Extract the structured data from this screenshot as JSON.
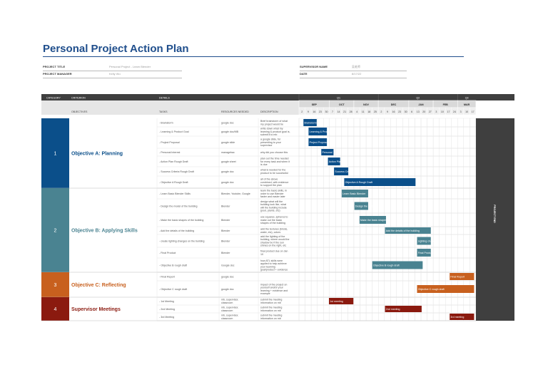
{
  "title": "Personal Project Action Plan",
  "meta": {
    "project_title_label": "PROJECT TITLE",
    "project_title_value": "Personal Project - Learn Blender",
    "project_manager_label": "PROJECT MANAGER",
    "project_manager_value": "Kelly Wu",
    "supervisor_label": "SUPERVISOR NAME",
    "supervisor_value": "吴老师",
    "date_label": "DATE",
    "date_value": "8/17/22"
  },
  "headers": {
    "category": "CATEGORY",
    "criterion": "CRITERION",
    "details": "DETAILS",
    "objectives": "OBJECTIVES",
    "tasks": "TASKS",
    "resources": "RESOURCES NEEDED",
    "description": "DESCRIPTION"
  },
  "quarters": [
    "Q1",
    "Q2",
    "Q3"
  ],
  "months": [
    "SEP",
    "OCT",
    "NOV",
    "DEC",
    "JAN",
    "FEB",
    "MAR"
  ],
  "weeks": [
    "2",
    "9",
    "16",
    "23",
    "30",
    "7",
    "14",
    "21",
    "28",
    "4",
    "11",
    "18",
    "25",
    "2",
    "9",
    "16",
    "23",
    "30",
    "6",
    "13",
    "20",
    "27",
    "3",
    "10",
    "17",
    "24",
    "3",
    "10",
    "17"
  ],
  "project_end_label": "PROJECT END",
  "colors": {
    "planning": "#0b4f8a",
    "applying": "#4a8391",
    "reflecting": "#c8601e",
    "meetings": "#8b1a0f",
    "header": "#3f3f3f"
  },
  "groups": [
    {
      "num": "1",
      "objective": "Objective A: Planning",
      "color_key": "planning",
      "tasks": [
        {
          "task": "Brainstorm",
          "res": "google doc",
          "desc": [
            "Brief brainstorm of what",
            "my project would be"
          ],
          "bar": "Brainstorm"
        },
        {
          "task": "Learning & Product Goal",
          "res": "google doc/MB",
          "desc": [
            "write down what my",
            "learning & product goal is,",
            "submit it to mb"
          ],
          "bar": "Learning & Product Goal"
        },
        {
          "task": "Project Proposal",
          "res": "google slide",
          "desc": [
            "a google slide, for",
            "presenting to your",
            "supervisor"
          ],
          "bar": "Project Proposal"
        },
        {
          "task": "Personal Interest",
          "res": "managebac",
          "desc": [
            "why did you choose this"
          ],
          "bar": "Personal"
        },
        {
          "task": "Action Plan Rough Draft",
          "res": "google sheet",
          "desc": [
            "plan out the time needed",
            "for every task and when it",
            "is due"
          ],
          "bar": "Action Plan"
        },
        {
          "task": "Success Criteria Rough Draft",
          "res": "google doc",
          "desc": [
            "what is needed for the",
            "product to be successful"
          ],
          "bar": "Success Criteria"
        },
        {
          "task": "Objective A Rough Draft",
          "res": "google doc",
          "desc": [
            "all of the above",
            "combined, with evidence",
            "to support the plan"
          ],
          "bar": "Objective A Rough Draft"
        }
      ]
    },
    {
      "num": "2",
      "objective": "Objective B: Applying Skills",
      "color_key": "applying",
      "tasks": [
        {
          "task": "Learn Basic Blender Skills",
          "res": "Blender, Youtube, Google",
          "desc": [
            "learn the basic skills, in",
            "order to use Blender",
            "faster and easier later"
          ],
          "bar": "Learn Basic Blender"
        },
        {
          "task": "Design the model of the building",
          "res": "Blender",
          "desc": [
            "design what will the",
            "building look like, what",
            "will the building include",
            "(pool, plants, etc)"
          ],
          "bar": "Design the model"
        },
        {
          "task": "Make the basic shapes of the building",
          "res": "Blender",
          "desc": [
            "use squares, spheres to",
            "make out the basic",
            "shapes of the building"
          ],
          "bar": "Make the basic shapes"
        },
        {
          "task": "Add the details of the building",
          "res": "Blender",
          "desc": [
            "add the textures (bricks,",
            "water, etc), colors"
          ],
          "bar": "Add the details of the building"
        },
        {
          "task": "create lighting changes on the building",
          "res": "Blender",
          "desc": [
            "add the lighting of the",
            "building, where would the",
            "shadow be if the sun",
            "shines on the right, etc"
          ],
          "bar": "Lighting changes"
        },
        {
          "task": "Final Product",
          "res": "Blender",
          "desc": [
            "final product due on Jan",
            "10"
          ],
          "bar": "Final Product"
        },
        {
          "task": "Objective B rough draft",
          "res": "Google doc",
          "desc": [
            "how ATL skills were",
            "applied to help achieve",
            "your learning",
            "goal/product + evidence"
          ],
          "bar": "Objective B rough draft"
        }
      ]
    },
    {
      "num": "3",
      "objective": "Objective C: Reflecting",
      "color_key": "reflecting",
      "tasks": [
        {
          "task": "Final Report",
          "res": "google doc",
          "desc": [],
          "bar": "Final Report"
        },
        {
          "task": "Objective C rough draft",
          "res": "google doc",
          "desc": [
            "impact of the project on",
            "yourself and/or your",
            "learning + evidence and",
            "example"
          ],
          "bar": "Objective C rough draft"
        }
      ]
    },
    {
      "num": "4",
      "objective": "Supervisor Meetings",
      "color_key": "meetings",
      "tasks": [
        {
          "task": "1st Meeting",
          "res": [
            "mb, supervisor,",
            "classroom"
          ],
          "desc": [
            "submit the meeting",
            "information on mb"
          ],
          "bar": "1st meeting"
        },
        {
          "task": "2nd Meeting",
          "res": [
            "mb, supervisor,",
            "classroom"
          ],
          "desc": [
            "submit the meeting",
            "information on mb"
          ],
          "bar": "2nd meeting"
        },
        {
          "task": "3rd Meeting",
          "res": [
            "mb, supervisor,",
            "classroom"
          ],
          "desc": [
            "submit the meeting",
            "information on mb"
          ],
          "bar": "3rd meeting"
        }
      ]
    }
  ]
}
